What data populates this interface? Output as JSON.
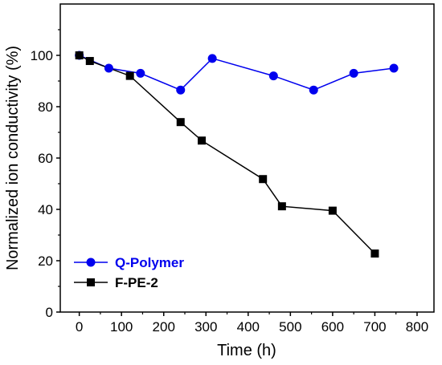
{
  "chart_data": {
    "type": "line",
    "xlabel": "Time (h)",
    "ylabel": "Normalized ion conductivity (%)",
    "xlim": [
      -45,
      840
    ],
    "ylim": [
      0,
      120
    ],
    "xticks": [
      0,
      100,
      200,
      300,
      400,
      500,
      600,
      700,
      800
    ],
    "yticks": [
      0,
      20,
      40,
      60,
      80,
      100
    ],
    "grid": false,
    "legend_position": "bottom-left",
    "series": [
      {
        "name": "Q-Polymer",
        "color": "#0000ee",
        "marker": "circle",
        "x": [
          0,
          70,
          145,
          240,
          315,
          460,
          555,
          650,
          745
        ],
        "y": [
          100,
          95,
          93,
          86.5,
          98.8,
          92,
          86.5,
          93,
          95
        ]
      },
      {
        "name": "F-PE-2",
        "color": "#000000",
        "marker": "square",
        "x": [
          0,
          25,
          120,
          240,
          290,
          435,
          480,
          600,
          700
        ],
        "y": [
          100,
          97.8,
          92,
          74,
          66.8,
          51.8,
          41.2,
          39.5,
          22.8
        ]
      }
    ]
  }
}
